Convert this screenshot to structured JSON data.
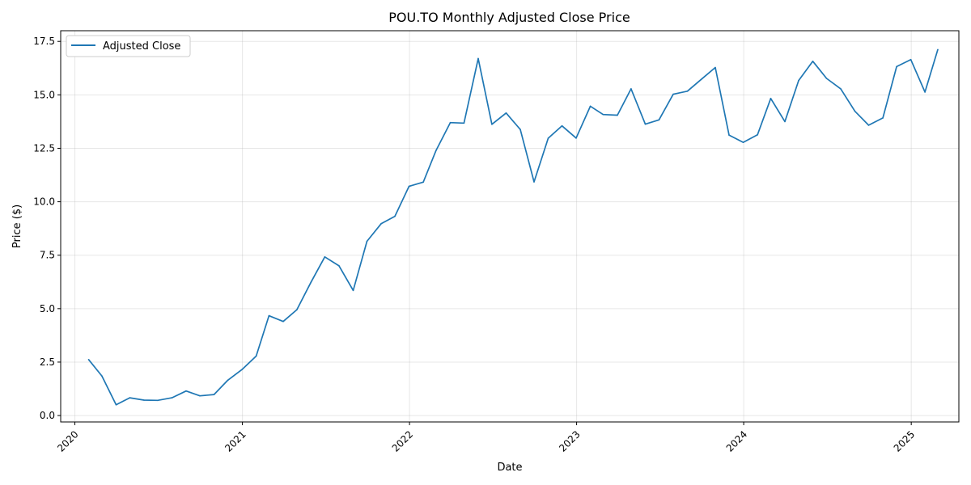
{
  "chart_data": {
    "type": "line",
    "title": "POU.TO Monthly Adjusted Close Price",
    "xlabel": "Date",
    "ylabel": "Price ($)",
    "x_ticks": [
      "2020",
      "2021",
      "2022",
      "2023",
      "2024",
      "2025"
    ],
    "y_ticks": [
      "0.0",
      "2.5",
      "5.0",
      "7.5",
      "10.0",
      "12.5",
      "15.0",
      "17.5"
    ],
    "xlim": [
      "2019-12-01",
      "2025-04-15"
    ],
    "ylim": [
      -0.3,
      18.0
    ],
    "grid": true,
    "legend_position": "upper-left",
    "series": [
      {
        "name": "Adjusted Close",
        "color": "#1f77b4",
        "x": [
          "2020-01-31",
          "2020-02-29",
          "2020-03-31",
          "2020-04-30",
          "2020-05-31",
          "2020-06-30",
          "2020-07-31",
          "2020-08-31",
          "2020-09-30",
          "2020-10-31",
          "2020-11-30",
          "2020-12-31",
          "2021-01-31",
          "2021-02-28",
          "2021-03-31",
          "2021-04-30",
          "2021-05-31",
          "2021-06-30",
          "2021-07-31",
          "2021-08-31",
          "2021-09-30",
          "2021-10-31",
          "2021-11-30",
          "2021-12-31",
          "2022-01-31",
          "2022-02-28",
          "2022-03-31",
          "2022-04-30",
          "2022-05-31",
          "2022-06-30",
          "2022-07-31",
          "2022-08-31",
          "2022-09-30",
          "2022-10-31",
          "2022-11-30",
          "2022-12-31",
          "2023-01-31",
          "2023-02-28",
          "2023-03-31",
          "2023-04-30",
          "2023-05-31",
          "2023-06-30",
          "2023-07-31",
          "2023-08-31",
          "2023-09-30",
          "2023-10-31",
          "2023-11-30",
          "2023-12-31",
          "2024-01-31",
          "2024-02-29",
          "2024-03-31",
          "2024-04-30",
          "2024-05-31",
          "2024-06-30",
          "2024-07-31",
          "2024-08-31",
          "2024-09-30",
          "2024-10-31",
          "2024-11-30",
          "2024-12-31",
          "2025-01-31",
          "2025-02-28"
        ],
        "y": [
          2.62,
          1.85,
          0.5,
          0.83,
          0.72,
          0.71,
          0.83,
          1.15,
          0.92,
          0.98,
          1.65,
          2.15,
          2.78,
          4.67,
          4.4,
          4.95,
          6.25,
          7.42,
          7.0,
          5.85,
          8.15,
          8.97,
          9.32,
          10.72,
          10.92,
          12.4,
          13.7,
          13.68,
          16.7,
          13.62,
          14.15,
          13.38,
          10.93,
          12.97,
          13.55,
          12.98,
          14.47,
          14.08,
          14.05,
          15.28,
          13.63,
          13.83,
          15.03,
          15.17,
          15.72,
          16.28,
          13.12,
          12.78,
          13.13,
          14.83,
          13.75,
          15.67,
          16.57,
          15.77,
          15.28,
          14.23,
          13.58,
          13.92,
          16.32,
          16.65,
          15.13,
          17.12
        ]
      }
    ]
  }
}
